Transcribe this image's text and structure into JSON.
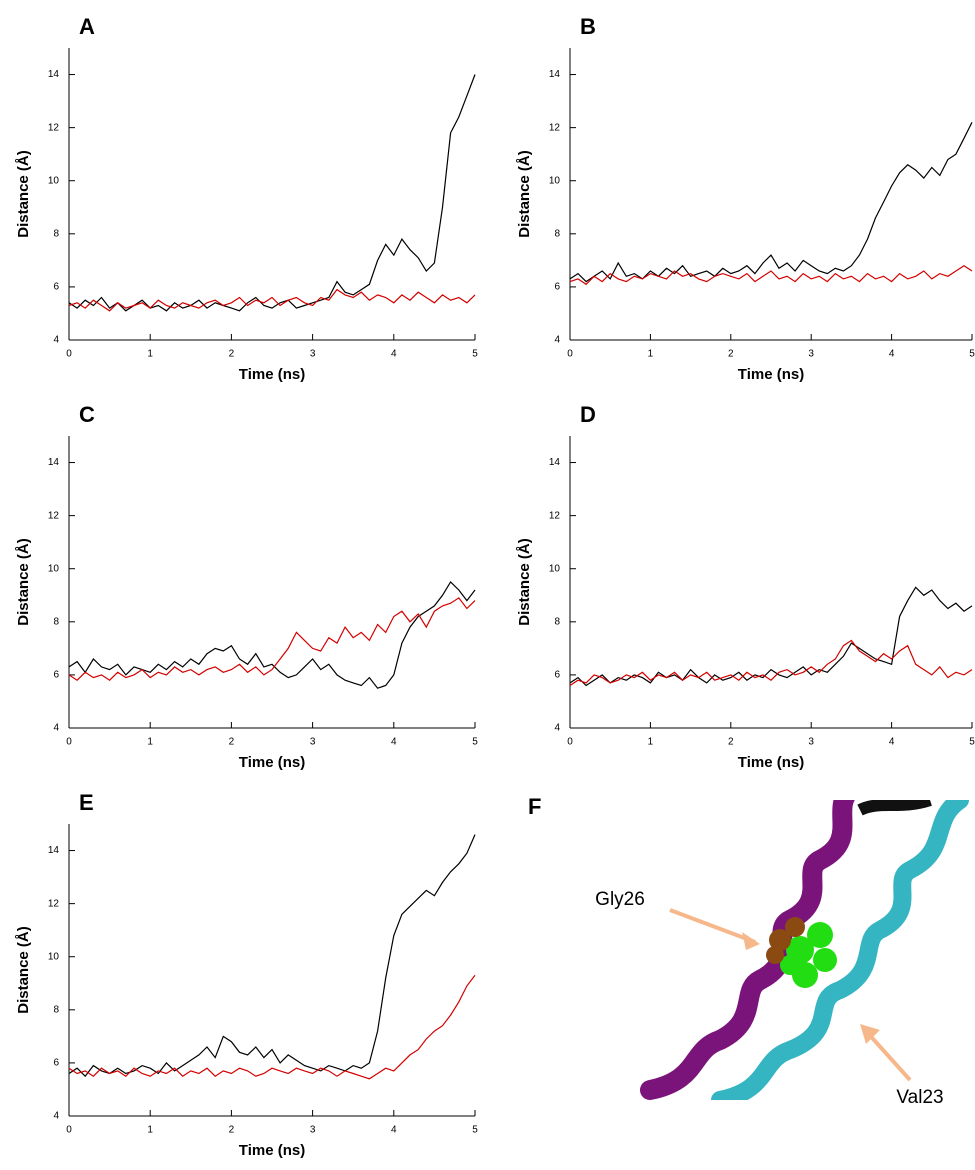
{
  "chart_data": [
    {
      "type": "line",
      "title": "A",
      "xlabel": "Time (ns)",
      "ylabel": "Distance (Å)",
      "x": [
        0,
        0.1,
        0.2,
        0.3,
        0.4,
        0.5,
        0.6,
        0.7,
        0.8,
        0.9,
        1,
        1.1,
        1.2,
        1.3,
        1.4,
        1.5,
        1.6,
        1.7,
        1.8,
        1.9,
        2,
        2.1,
        2.2,
        2.3,
        2.4,
        2.5,
        2.6,
        2.7,
        2.8,
        2.9,
        3,
        3.1,
        3.2,
        3.3,
        3.4,
        3.5,
        3.6,
        3.7,
        3.8,
        3.9,
        4,
        4.1,
        4.2,
        4.3,
        4.4,
        4.5,
        4.6,
        4.7,
        4.8,
        4.9,
        5
      ],
      "series": [
        {
          "color": "#000000",
          "values": [
            5.4,
            5.2,
            5.5,
            5.3,
            5.6,
            5.2,
            5.4,
            5.1,
            5.3,
            5.5,
            5.2,
            5.3,
            5.1,
            5.4,
            5.2,
            5.3,
            5.5,
            5.2,
            5.4,
            5.3,
            5.2,
            5.1,
            5.4,
            5.6,
            5.3,
            5.2,
            5.4,
            5.5,
            5.2,
            5.3,
            5.4,
            5.5,
            5.6,
            6.2,
            5.8,
            5.7,
            5.9,
            6.1,
            7.0,
            7.6,
            7.2,
            7.8,
            7.4,
            7.1,
            6.6,
            6.9,
            9.0,
            11.8,
            12.4,
            13.2,
            14.0
          ]
        },
        {
          "color": "#d40000",
          "values": [
            5.3,
            5.4,
            5.2,
            5.5,
            5.3,
            5.1,
            5.4,
            5.2,
            5.3,
            5.4,
            5.2,
            5.5,
            5.3,
            5.2,
            5.4,
            5.3,
            5.2,
            5.4,
            5.5,
            5.3,
            5.4,
            5.6,
            5.3,
            5.5,
            5.4,
            5.6,
            5.3,
            5.5,
            5.6,
            5.4,
            5.3,
            5.6,
            5.5,
            5.9,
            5.7,
            5.6,
            5.8,
            5.5,
            5.7,
            5.6,
            5.4,
            5.7,
            5.5,
            5.8,
            5.6,
            5.4,
            5.7,
            5.5,
            5.6,
            5.4,
            5.7
          ]
        }
      ],
      "xlim": [
        0,
        5
      ],
      "xticks": [
        0,
        1,
        2,
        3,
        4,
        5
      ],
      "ylim": [
        4,
        15
      ],
      "yticks": [
        4,
        6,
        8,
        10,
        12,
        14
      ]
    },
    {
      "type": "line",
      "title": "B",
      "xlabel": "Time (ns)",
      "ylabel": "Distance (Å)",
      "x": [
        0,
        0.1,
        0.2,
        0.3,
        0.4,
        0.5,
        0.6,
        0.7,
        0.8,
        0.9,
        1,
        1.1,
        1.2,
        1.3,
        1.4,
        1.5,
        1.6,
        1.7,
        1.8,
        1.9,
        2,
        2.1,
        2.2,
        2.3,
        2.4,
        2.5,
        2.6,
        2.7,
        2.8,
        2.9,
        3,
        3.1,
        3.2,
        3.3,
        3.4,
        3.5,
        3.6,
        3.7,
        3.8,
        3.9,
        4,
        4.1,
        4.2,
        4.3,
        4.4,
        4.5,
        4.6,
        4.7,
        4.8,
        4.9,
        5
      ],
      "series": [
        {
          "color": "#000000",
          "values": [
            6.3,
            6.5,
            6.2,
            6.4,
            6.6,
            6.3,
            6.9,
            6.4,
            6.5,
            6.3,
            6.6,
            6.4,
            6.7,
            6.5,
            6.8,
            6.4,
            6.5,
            6.6,
            6.4,
            6.7,
            6.5,
            6.6,
            6.8,
            6.5,
            6.9,
            7.2,
            6.7,
            6.9,
            6.6,
            7.0,
            6.8,
            6.6,
            6.5,
            6.7,
            6.6,
            6.8,
            7.2,
            7.8,
            8.6,
            9.2,
            9.8,
            10.3,
            10.6,
            10.4,
            10.1,
            10.5,
            10.2,
            10.8,
            11.0,
            11.6,
            12.2
          ]
        },
        {
          "color": "#d40000",
          "values": [
            6.2,
            6.3,
            6.1,
            6.4,
            6.2,
            6.5,
            6.3,
            6.2,
            6.4,
            6.3,
            6.5,
            6.4,
            6.3,
            6.6,
            6.4,
            6.5,
            6.3,
            6.2,
            6.4,
            6.5,
            6.4,
            6.3,
            6.5,
            6.2,
            6.4,
            6.6,
            6.3,
            6.4,
            6.2,
            6.5,
            6.3,
            6.4,
            6.2,
            6.5,
            6.3,
            6.4,
            6.2,
            6.5,
            6.3,
            6.4,
            6.2,
            6.5,
            6.3,
            6.4,
            6.6,
            6.3,
            6.5,
            6.4,
            6.6,
            6.8,
            6.6
          ]
        }
      ],
      "xlim": [
        0,
        5
      ],
      "xticks": [
        0,
        1,
        2,
        3,
        4,
        5
      ],
      "ylim": [
        4,
        15
      ],
      "yticks": [
        4,
        6,
        8,
        10,
        12,
        14
      ]
    },
    {
      "type": "line",
      "title": "C",
      "xlabel": "Time (ns)",
      "ylabel": "Distance (Å)",
      "x": [
        0,
        0.1,
        0.2,
        0.3,
        0.4,
        0.5,
        0.6,
        0.7,
        0.8,
        0.9,
        1,
        1.1,
        1.2,
        1.3,
        1.4,
        1.5,
        1.6,
        1.7,
        1.8,
        1.9,
        2,
        2.1,
        2.2,
        2.3,
        2.4,
        2.5,
        2.6,
        2.7,
        2.8,
        2.9,
        3,
        3.1,
        3.2,
        3.3,
        3.4,
        3.5,
        3.6,
        3.7,
        3.8,
        3.9,
        4,
        4.1,
        4.2,
        4.3,
        4.4,
        4.5,
        4.6,
        4.7,
        4.8,
        4.9,
        5
      ],
      "series": [
        {
          "color": "#000000",
          "values": [
            6.3,
            6.5,
            6.1,
            6.6,
            6.3,
            6.2,
            6.4,
            6.0,
            6.3,
            6.2,
            6.1,
            6.4,
            6.2,
            6.5,
            6.3,
            6.6,
            6.4,
            6.8,
            7.0,
            6.9,
            7.1,
            6.6,
            6.4,
            6.8,
            6.3,
            6.4,
            6.1,
            5.9,
            6.0,
            6.3,
            6.6,
            6.2,
            6.4,
            6.0,
            5.8,
            5.7,
            5.6,
            5.9,
            5.5,
            5.6,
            6.0,
            7.2,
            7.8,
            8.2,
            8.4,
            8.6,
            9.0,
            9.5,
            9.2,
            8.8,
            9.2
          ]
        },
        {
          "color": "#d40000",
          "values": [
            6.0,
            5.8,
            6.1,
            5.9,
            6.0,
            5.8,
            6.1,
            5.9,
            6.0,
            6.2,
            5.9,
            6.1,
            6.0,
            6.3,
            6.1,
            6.2,
            6.0,
            6.2,
            6.3,
            6.1,
            6.2,
            6.4,
            6.1,
            6.3,
            6.0,
            6.2,
            6.6,
            7.0,
            7.6,
            7.3,
            7.0,
            6.9,
            7.4,
            7.2,
            7.8,
            7.4,
            7.6,
            7.3,
            7.9,
            7.6,
            8.2,
            8.4,
            8.0,
            8.3,
            7.8,
            8.4,
            8.6,
            8.7,
            8.9,
            8.5,
            8.8
          ]
        }
      ],
      "xlim": [
        0,
        5
      ],
      "xticks": [
        0,
        1,
        2,
        3,
        4,
        5
      ],
      "ylim": [
        4,
        15
      ],
      "yticks": [
        4,
        6,
        8,
        10,
        12,
        14
      ]
    },
    {
      "type": "line",
      "title": "D",
      "xlabel": "Time (ns)",
      "ylabel": "Distance (Å)",
      "x": [
        0,
        0.1,
        0.2,
        0.3,
        0.4,
        0.5,
        0.6,
        0.7,
        0.8,
        0.9,
        1,
        1.1,
        1.2,
        1.3,
        1.4,
        1.5,
        1.6,
        1.7,
        1.8,
        1.9,
        2,
        2.1,
        2.2,
        2.3,
        2.4,
        2.5,
        2.6,
        2.7,
        2.8,
        2.9,
        3,
        3.1,
        3.2,
        3.3,
        3.4,
        3.5,
        3.6,
        3.7,
        3.8,
        3.9,
        4,
        4.1,
        4.2,
        4.3,
        4.4,
        4.5,
        4.6,
        4.7,
        4.8,
        4.9,
        5
      ],
      "series": [
        {
          "color": "#000000",
          "values": [
            5.7,
            5.9,
            5.6,
            5.8,
            6.0,
            5.7,
            5.9,
            5.8,
            6.0,
            5.9,
            5.7,
            6.1,
            5.9,
            6.0,
            5.8,
            6.2,
            5.9,
            5.7,
            6.0,
            5.8,
            5.9,
            6.1,
            5.8,
            6.0,
            5.9,
            6.2,
            6.0,
            5.9,
            6.1,
            6.3,
            6.0,
            6.2,
            6.1,
            6.4,
            6.7,
            7.2,
            7.0,
            6.8,
            6.6,
            6.5,
            6.4,
            8.2,
            8.8,
            9.3,
            9.0,
            9.2,
            8.8,
            8.5,
            8.7,
            8.4,
            8.6
          ]
        },
        {
          "color": "#d40000",
          "values": [
            5.6,
            5.8,
            5.7,
            6.0,
            5.9,
            5.7,
            5.8,
            6.0,
            5.9,
            6.1,
            5.8,
            6.0,
            5.9,
            6.1,
            5.8,
            6.0,
            5.9,
            6.1,
            5.8,
            5.9,
            6.0,
            5.8,
            6.1,
            5.9,
            6.0,
            5.8,
            6.1,
            6.2,
            6.0,
            6.1,
            6.3,
            6.1,
            6.4,
            6.6,
            7.1,
            7.3,
            6.9,
            6.7,
            6.5,
            6.8,
            6.6,
            6.9,
            7.1,
            6.4,
            6.2,
            6.0,
            6.3,
            5.9,
            6.1,
            6.0,
            6.2
          ]
        }
      ],
      "xlim": [
        0,
        5
      ],
      "xticks": [
        0,
        1,
        2,
        3,
        4,
        5
      ],
      "ylim": [
        4,
        15
      ],
      "yticks": [
        4,
        6,
        8,
        10,
        12,
        14
      ]
    },
    {
      "type": "line",
      "title": "E",
      "xlabel": "Time (ns)",
      "ylabel": "Distance (Å)",
      "x": [
        0,
        0.1,
        0.2,
        0.3,
        0.4,
        0.5,
        0.6,
        0.7,
        0.8,
        0.9,
        1,
        1.1,
        1.2,
        1.3,
        1.4,
        1.5,
        1.6,
        1.7,
        1.8,
        1.9,
        2,
        2.1,
        2.2,
        2.3,
        2.4,
        2.5,
        2.6,
        2.7,
        2.8,
        2.9,
        3,
        3.1,
        3.2,
        3.3,
        3.4,
        3.5,
        3.6,
        3.7,
        3.8,
        3.9,
        4,
        4.1,
        4.2,
        4.3,
        4.4,
        4.5,
        4.6,
        4.7,
        4.8,
        4.9,
        5
      ],
      "series": [
        {
          "color": "#000000",
          "values": [
            5.6,
            5.8,
            5.5,
            5.9,
            5.7,
            5.6,
            5.8,
            5.6,
            5.7,
            5.9,
            5.8,
            5.6,
            6.0,
            5.7,
            5.9,
            6.1,
            6.3,
            6.6,
            6.2,
            7.0,
            6.8,
            6.4,
            6.3,
            6.6,
            6.2,
            6.5,
            6.0,
            6.3,
            6.1,
            5.9,
            5.8,
            5.7,
            5.9,
            5.8,
            5.7,
            5.9,
            5.8,
            6.0,
            7.2,
            9.2,
            10.8,
            11.6,
            11.9,
            12.2,
            12.5,
            12.3,
            12.8,
            13.2,
            13.5,
            13.9,
            14.6
          ]
        },
        {
          "color": "#d40000",
          "values": [
            5.8,
            5.6,
            5.7,
            5.5,
            5.8,
            5.6,
            5.7,
            5.5,
            5.8,
            5.6,
            5.5,
            5.7,
            5.6,
            5.8,
            5.5,
            5.7,
            5.6,
            5.8,
            5.5,
            5.7,
            5.6,
            5.8,
            5.7,
            5.5,
            5.6,
            5.8,
            5.7,
            5.6,
            5.8,
            5.7,
            5.6,
            5.8,
            5.7,
            5.5,
            5.7,
            5.6,
            5.5,
            5.4,
            5.6,
            5.8,
            5.7,
            6.0,
            6.3,
            6.5,
            6.9,
            7.2,
            7.4,
            7.8,
            8.3,
            8.9,
            9.3
          ]
        }
      ],
      "xlim": [
        0,
        5
      ],
      "xticks": [
        0,
        1,
        2,
        3,
        4,
        5
      ],
      "ylim": [
        4,
        15
      ],
      "yticks": [
        4,
        6,
        8,
        10,
        12,
        14
      ]
    }
  ],
  "image_panel": {
    "title": "F",
    "annotations": [
      "Gly26",
      "Val23"
    ]
  }
}
